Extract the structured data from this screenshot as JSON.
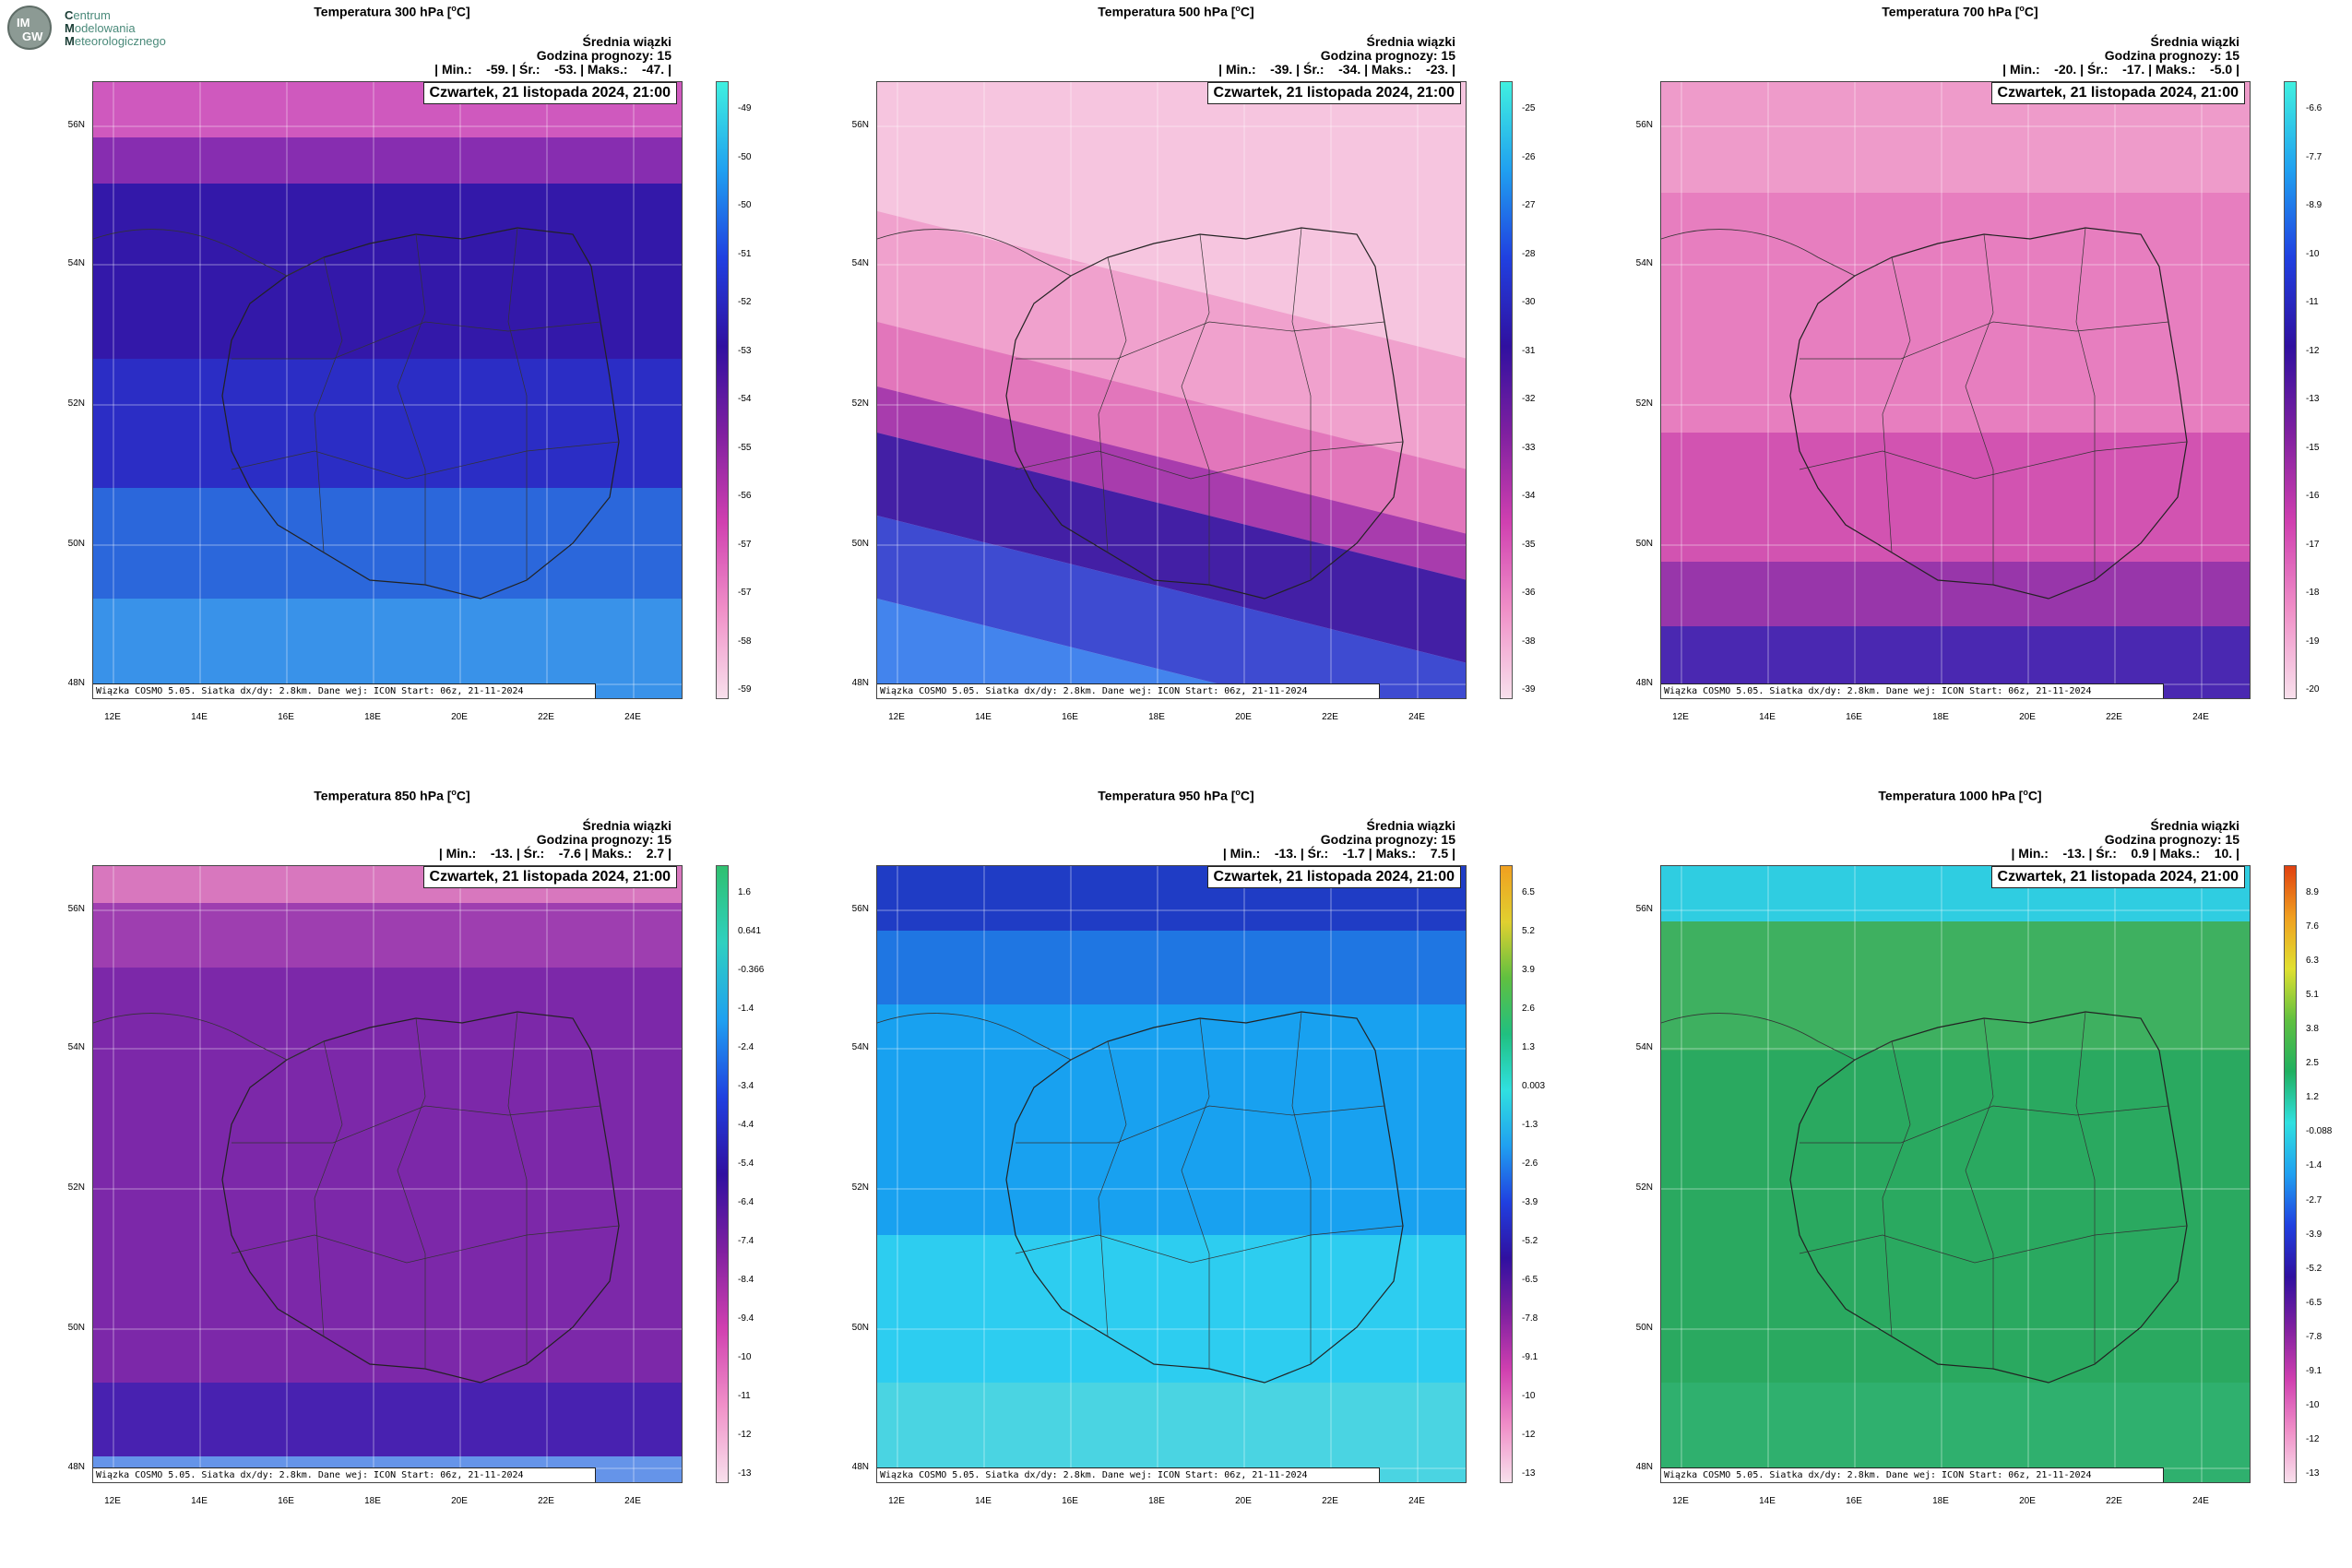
{
  "logo": {
    "l1": "entrum",
    "l2": "odelowania",
    "l3": "eteorologicznego",
    "c1": "C",
    "c2": "M",
    "c3": "M",
    "circle_top": "IM",
    "circle_bot": "GW"
  },
  "common": {
    "header1": "Średnia wiązki",
    "header2": "Godzina prognozy: 15",
    "date": "Czwartek, 21 listopada 2024, 21:00",
    "footer": "Wiązka COSMO 5.05. Siatka dx/dy: 2.8km. Dane wej: ICON Start: 06z, 21-11-2024",
    "lat_labels": [
      "56N",
      "54N",
      "52N",
      "50N",
      "48N"
    ],
    "lon_labels": [
      "12E",
      "14E",
      "16E",
      "18E",
      "20E",
      "22E",
      "24E"
    ]
  },
  "panels": [
    {
      "title": "Temperatura 300 hPa [",
      "unit_sup": "o",
      "unit_end": "C]",
      "minmax": "| Min.:    -59. | Śr.:    -53. | Maks.:    -47. |",
      "ticks": [
        "-49",
        "-50",
        "-50",
        "-51",
        "-52",
        "-53",
        "-54",
        "-55",
        "-56",
        "-57",
        "-57",
        "-58",
        "-59"
      ],
      "scheme": "cold"
    },
    {
      "title": "Temperatura 500 hPa [",
      "unit_sup": "o",
      "unit_end": "C]",
      "minmax": "| Min.:    -39. | Śr.:    -34. | Maks.:    -23. |",
      "ticks": [
        "-25",
        "-26",
        "-27",
        "-28",
        "-30",
        "-31",
        "-32",
        "-33",
        "-34",
        "-35",
        "-36",
        "-38",
        "-39"
      ],
      "scheme": "pink_dark_south"
    },
    {
      "title": "Temperatura 700 hPa [",
      "unit_sup": "o",
      "unit_end": "C]",
      "minmax": "| Min.:    -20. | Śr.:    -17. | Maks.:    -5.0 |",
      "ticks": [
        "-6.6",
        "-7.7",
        "-8.9",
        "-10",
        "-11",
        "-12",
        "-13",
        "-15",
        "-16",
        "-17",
        "-18",
        "-19",
        "-20"
      ],
      "scheme": "pink"
    },
    {
      "title": "Temperatura 850 hPa [",
      "unit_sup": "o",
      "unit_end": "C]",
      "minmax": "| Min.:    -13. | Śr.:    -7.6 | Maks.:    2.7 |",
      "ticks": [
        "1.6",
        "0.641",
        "-0.366",
        "-1.4",
        "-2.4",
        "-3.4",
        "-4.4",
        "-5.4",
        "-6.4",
        "-7.4",
        "-8.4",
        "-9.4",
        "-10",
        "-11",
        "-12",
        "-13"
      ],
      "scheme": "purple"
    },
    {
      "title": "Temperatura 950 hPa [",
      "unit_sup": "o",
      "unit_end": "C]",
      "minmax": "| Min.:    -13. | Śr.:    -1.7 | Maks.:    7.5 |",
      "ticks": [
        "6.5",
        "5.2",
        "3.9",
        "2.6",
        "1.3",
        "0.003",
        "-1.3",
        "-2.6",
        "-3.9",
        "-5.2",
        "-6.5",
        "-7.8",
        "-9.1",
        "-10",
        "-12",
        "-13"
      ],
      "scheme": "blue"
    },
    {
      "title": "Temperatura 1000 hPa [",
      "unit_sup": "o",
      "unit_end": "C]",
      "minmax": "| Min.:    -13. | Śr.:    0.9 | Maks.:    10. |",
      "ticks": [
        "8.9",
        "7.6",
        "6.3",
        "5.1",
        "3.8",
        "2.5",
        "1.2",
        "-0.088",
        "-1.4",
        "-2.7",
        "-3.9",
        "-5.2",
        "-6.5",
        "-7.8",
        "-9.1",
        "-10",
        "-12",
        "-13"
      ],
      "scheme": "green"
    }
  ],
  "colors": {
    "frame": "#444444"
  }
}
